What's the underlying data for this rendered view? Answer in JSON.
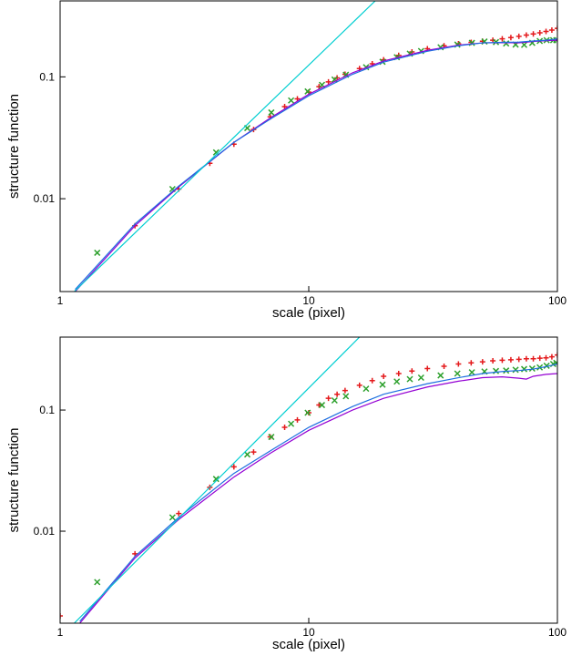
{
  "chart_data": [
    {
      "type": "line",
      "xlabel": "scale (pixel)",
      "ylabel": "structure function",
      "xscale": "log",
      "yscale": "log",
      "xlim": [
        1,
        100
      ],
      "ylim": [
        0.00173,
        0.42
      ],
      "xticks": [
        1,
        10,
        100
      ],
      "yticks": [
        0.01,
        0.1
      ],
      "series": [
        {
          "color": "#e41a1c",
          "style": "plus",
          "x": [
            2,
            3,
            4,
            5,
            6,
            7,
            8,
            9,
            10,
            11,
            12,
            13,
            14,
            16,
            18,
            20,
            23,
            26,
            30,
            35,
            40,
            45,
            50,
            55,
            60,
            65,
            70,
            75,
            80,
            85,
            90,
            95,
            100
          ],
          "values": [
            0.006,
            0.012,
            0.0195,
            0.028,
            0.037,
            0.047,
            0.057,
            0.066,
            0.075,
            0.083,
            0.091,
            0.098,
            0.105,
            0.117,
            0.128,
            0.138,
            0.15,
            0.16,
            0.17,
            0.18,
            0.187,
            0.192,
            0.196,
            0.2,
            0.205,
            0.21,
            0.215,
            0.22,
            0.225,
            0.23,
            0.236,
            0.242,
            0.25
          ]
        },
        {
          "color": "#2ca02c",
          "style": "cross",
          "x": [
            1.41,
            2.83,
            4.24,
            5.66,
            7.07,
            8.49,
            9.9,
            11.3,
            12.7,
            14.1,
            17,
            19.8,
            22.6,
            25.5,
            28.3,
            33.9,
            39.6,
            45.3,
            50.9,
            56.6,
            62.2,
            67.9,
            73.5,
            79.2,
            84.9,
            90.5,
            96.2,
            99
          ],
          "values": [
            0.0036,
            0.012,
            0.024,
            0.038,
            0.051,
            0.064,
            0.076,
            0.086,
            0.095,
            0.104,
            0.12,
            0.133,
            0.145,
            0.155,
            0.163,
            0.175,
            0.184,
            0.19,
            0.195,
            0.193,
            0.188,
            0.184,
            0.183,
            0.19,
            0.197,
            0.2,
            0.2,
            0.2
          ]
        },
        {
          "color": "#9400d3",
          "style": "line",
          "x": [
            1.15,
            2,
            3,
            5,
            7,
            10,
            15,
            20,
            30,
            40,
            50,
            60,
            70,
            80,
            90,
            100
          ],
          "values": [
            0.00173,
            0.006,
            0.0125,
            0.029,
            0.046,
            0.072,
            0.108,
            0.135,
            0.165,
            0.182,
            0.19,
            0.191,
            0.19,
            0.195,
            0.198,
            0.2
          ]
        },
        {
          "color": "#1e6fe0",
          "style": "line",
          "x": [
            1.15,
            2,
            3,
            5,
            7,
            10,
            15,
            20,
            30,
            40,
            50,
            60,
            70,
            80,
            90,
            100
          ],
          "values": [
            0.0018,
            0.0062,
            0.0127,
            0.029,
            0.045,
            0.07,
            0.105,
            0.132,
            0.162,
            0.18,
            0.19,
            0.192,
            0.193,
            0.197,
            0.2,
            0.205
          ]
        },
        {
          "color": "#00ced1",
          "style": "line",
          "x": [
            1.14,
            18.5
          ],
          "values": [
            0.00173,
            0.42
          ]
        }
      ]
    },
    {
      "type": "line",
      "xlabel": "scale (pixel)",
      "ylabel": "structure function",
      "xscale": "log",
      "yscale": "log",
      "xlim": [
        1,
        100
      ],
      "ylim": [
        0.00174,
        0.4
      ],
      "xticks": [
        1,
        10,
        100
      ],
      "yticks": [
        0.01,
        0.1
      ],
      "series": [
        {
          "color": "#e41a1c",
          "style": "plus",
          "x": [
            1,
            2,
            3,
            4,
            5,
            6,
            7,
            8,
            9,
            10,
            11,
            12,
            13,
            14,
            16,
            18,
            20,
            23,
            26,
            30,
            35,
            40,
            45,
            50,
            55,
            60,
            65,
            70,
            75,
            80,
            85,
            90,
            95,
            100
          ],
          "values": [
            0.002,
            0.0065,
            0.014,
            0.023,
            0.034,
            0.045,
            0.06,
            0.072,
            0.083,
            0.095,
            0.11,
            0.125,
            0.135,
            0.145,
            0.16,
            0.175,
            0.19,
            0.2,
            0.21,
            0.22,
            0.23,
            0.24,
            0.245,
            0.25,
            0.255,
            0.258,
            0.26,
            0.262,
            0.265,
            0.265,
            0.268,
            0.27,
            0.275,
            0.285
          ]
        },
        {
          "color": "#2ca02c",
          "style": "cross",
          "x": [
            1.41,
            2.83,
            4.24,
            5.66,
            7.07,
            8.49,
            9.9,
            11.3,
            12.7,
            14.1,
            17,
            19.8,
            22.6,
            25.5,
            28.3,
            33.9,
            39.6,
            45.3,
            50.9,
            56.6,
            62.2,
            67.9,
            73.5,
            79.2,
            84.9,
            90.5,
            96.2,
            99
          ],
          "values": [
            0.0038,
            0.013,
            0.027,
            0.043,
            0.06,
            0.077,
            0.095,
            0.11,
            0.12,
            0.13,
            0.15,
            0.162,
            0.172,
            0.18,
            0.185,
            0.193,
            0.2,
            0.205,
            0.208,
            0.21,
            0.212,
            0.215,
            0.218,
            0.22,
            0.225,
            0.232,
            0.24,
            0.245
          ]
        },
        {
          "color": "#9400d3",
          "style": "line",
          "x": [
            1.2,
            2,
            3,
            5,
            7,
            10,
            15,
            20,
            30,
            40,
            50,
            60,
            70,
            75,
            80,
            90,
            100
          ],
          "values": [
            0.00174,
            0.006,
            0.0125,
            0.028,
            0.044,
            0.068,
            0.1,
            0.125,
            0.155,
            0.173,
            0.185,
            0.188,
            0.183,
            0.18,
            0.19,
            0.197,
            0.2
          ]
        },
        {
          "color": "#1e6fe0",
          "style": "line",
          "x": [
            1.2,
            2,
            3,
            5,
            7,
            10,
            15,
            20,
            30,
            40,
            50,
            60,
            70,
            80,
            90,
            100
          ],
          "values": [
            0.0018,
            0.0062,
            0.013,
            0.03,
            0.046,
            0.072,
            0.107,
            0.135,
            0.165,
            0.185,
            0.2,
            0.208,
            0.212,
            0.218,
            0.228,
            0.24
          ]
        },
        {
          "color": "#00ced1",
          "style": "line",
          "x": [
            1.14,
            16
          ],
          "values": [
            0.00174,
            0.4
          ]
        }
      ]
    }
  ]
}
